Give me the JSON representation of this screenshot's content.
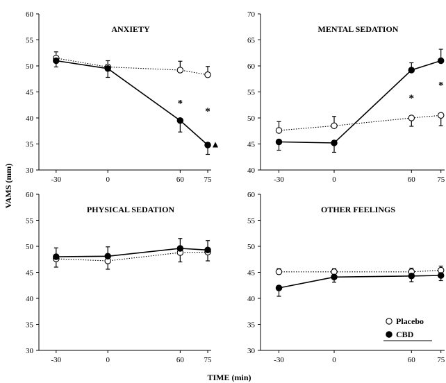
{
  "figure": {
    "ylabel": "VAMS (mm)",
    "xlabel": "TIME (min)"
  },
  "legend": {
    "placement": "bottom-right of OTHER FEELINGS panel",
    "entries": [
      {
        "label": "Placebo",
        "marker": "open-circle",
        "line": "dotted"
      },
      {
        "label": "CBD",
        "marker": "filled-circle",
        "line": "solid"
      }
    ]
  },
  "chart_data": [
    {
      "type": "line",
      "title": "ANXIETY",
      "xticks": [
        "-30",
        "0",
        "60",
        "75"
      ],
      "ylim": [
        30,
        60
      ],
      "yticks": [
        "30",
        "35",
        "40",
        "45",
        "50",
        "55",
        "60"
      ],
      "series": [
        {
          "name": "Placebo",
          "style": "open-dotted",
          "values": [
            51.5,
            49.8,
            49.2,
            48.3
          ],
          "err": [
            1.2,
            1.2,
            1.7,
            1.6
          ]
        },
        {
          "name": "CBD",
          "style": "filled-solid",
          "values": [
            51.0,
            49.5,
            39.5,
            34.8
          ],
          "err": [
            1.2,
            1.7,
            2.2,
            1.8
          ]
        }
      ],
      "stars": [
        {
          "x": 2,
          "y": 43
        },
        {
          "x": 3,
          "y": 41.5
        }
      ],
      "triangle": {
        "x": 3,
        "y": 34.8
      }
    },
    {
      "type": "line",
      "title": "MENTAL SEDATION",
      "xticks": [
        "-30",
        "0",
        "60",
        "75"
      ],
      "ylim": [
        40,
        70
      ],
      "yticks": [
        "40",
        "45",
        "50",
        "55",
        "60",
        "65",
        "70"
      ],
      "series": [
        {
          "name": "Placebo",
          "style": "open-dotted",
          "values": [
            47.6,
            48.5,
            50.0,
            50.5
          ],
          "err": [
            1.7,
            1.8,
            1.6,
            2.0
          ]
        },
        {
          "name": "CBD",
          "style": "filled-solid",
          "values": [
            45.4,
            45.2,
            59.2,
            61.0
          ],
          "err": [
            1.6,
            1.8,
            1.4,
            2.2
          ]
        }
      ],
      "stars": [
        {
          "x": 2,
          "y": 54
        },
        {
          "x": 3,
          "y": 56.5
        }
      ],
      "triangle": {
        "x": 3,
        "y": 61.0
      }
    },
    {
      "type": "line",
      "title": "PHYSICAL SEDATION",
      "xticks": [
        "-30",
        "0",
        "60",
        "75"
      ],
      "ylim": [
        30,
        60
      ],
      "yticks": [
        "30",
        "35",
        "40",
        "45",
        "50",
        "55",
        "60"
      ],
      "series": [
        {
          "name": "Placebo",
          "style": "open-dotted",
          "values": [
            47.6,
            47.2,
            48.8,
            48.9
          ],
          "err": [
            1.6,
            1.6,
            1.8,
            1.7
          ]
        },
        {
          "name": "CBD",
          "style": "filled-solid",
          "values": [
            48.0,
            48.1,
            49.6,
            49.3
          ],
          "err": [
            1.7,
            1.8,
            1.9,
            1.8
          ]
        }
      ],
      "stars": [],
      "triangle": null
    },
    {
      "type": "line",
      "title": "OTHER FEELINGS",
      "xticks": [
        "-30",
        "0",
        "60",
        "75"
      ],
      "ylim": [
        30,
        60
      ],
      "yticks": [
        "30",
        "35",
        "40",
        "45",
        "50",
        "55",
        "60"
      ],
      "series": [
        {
          "name": "Placebo",
          "style": "open-dotted",
          "values": [
            45.1,
            45.1,
            45.1,
            45.4
          ],
          "err": [
            0.6,
            0.6,
            0.7,
            0.8
          ]
        },
        {
          "name": "CBD",
          "style": "filled-solid",
          "values": [
            42.0,
            44.1,
            44.3,
            44.4
          ],
          "err": [
            1.6,
            1.0,
            1.1,
            1.0
          ]
        }
      ],
      "stars": [],
      "triangle": null
    }
  ]
}
